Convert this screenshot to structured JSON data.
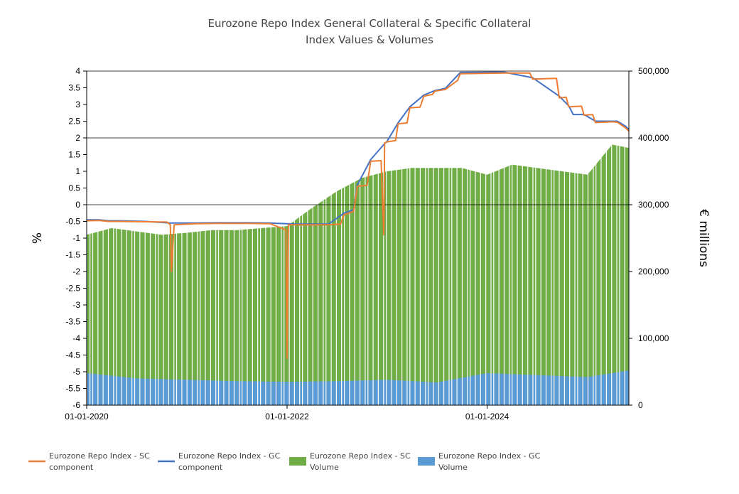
{
  "chart_data": {
    "type": "area",
    "title": "Eurozone Repo Index General Collateral & Specific Collateral",
    "subtitle": "Index Values & Volumes",
    "ylabel_left": "%",
    "ylabel_right": "€ millions",
    "ylim_left": [
      -6,
      4
    ],
    "ylim_right": [
      0,
      500000
    ],
    "xlim": [
      "2020-01-01",
      "2025-06-01"
    ],
    "y_ticks_left": [
      "4",
      "3.5",
      "3",
      "2.5",
      "2",
      "1.5",
      "1",
      "0.5",
      "0",
      "-0.5",
      "-1",
      "-1.5",
      "-2",
      "-2.5",
      "-3",
      "-3.5",
      "-4",
      "-4.5",
      "-5",
      "-5.5",
      "-6"
    ],
    "y_ticks_right": [
      "500,000",
      "400,000",
      "300,000",
      "200,000",
      "100,000",
      "0"
    ],
    "x_ticks": [
      {
        "date": "2020-01-01",
        "label": "01-01-2020"
      },
      {
        "date": "2022-01-01",
        "label": "01-01-2022"
      },
      {
        "date": "2024-01-01",
        "label": "01-01-2024"
      }
    ],
    "grid_lines_left": [
      0,
      2,
      4
    ],
    "legend_position": "bottom",
    "legend": [
      {
        "line1": "Eurozone Repo Index - SC",
        "line2": "component",
        "kind": "line",
        "color": "#ED7D31"
      },
      {
        "line1": "Eurozone Repo Index - GC",
        "line2": "component",
        "kind": "line",
        "color": "#4472C4"
      },
      {
        "line1": "Eurozone Repo Index - SC",
        "line2": "Volume",
        "kind": "area",
        "color": "#70AD47"
      },
      {
        "line1": "Eurozone Repo Index - GC",
        "line2": "Volume",
        "kind": "area",
        "color": "#5B9BD5"
      }
    ],
    "series": [
      {
        "name": "Eurozone Repo Index - SC component",
        "axis": "left",
        "type": "line",
        "color": "#ED7D31",
        "x": [
          "2020-01-01",
          "2020-02-15",
          "2020-03-20",
          "2020-05-01",
          "2020-08-01",
          "2020-10-20",
          "2020-11-01",
          "2020-11-05",
          "2020-11-15",
          "2021-02-01",
          "2021-05-01",
          "2021-08-01",
          "2021-11-01",
          "2021-12-28",
          "2022-01-01",
          "2022-01-06",
          "2022-02-01",
          "2022-04-01",
          "2022-06-01",
          "2022-07-15",
          "2022-07-28",
          "2022-09-01",
          "2022-09-15",
          "2022-10-20",
          "2022-11-02",
          "2022-12-10",
          "2022-12-20",
          "2022-12-23",
          "2023-01-01",
          "2023-02-01",
          "2023-02-10",
          "2023-03-15",
          "2023-03-25",
          "2023-05-01",
          "2023-05-15",
          "2023-06-15",
          "2023-06-25",
          "2023-08-01",
          "2023-09-15",
          "2023-09-25",
          "2024-03-01",
          "2024-06-05",
          "2024-06-15",
          "2024-09-10",
          "2024-09-20",
          "2024-10-15",
          "2024-10-25",
          "2024-12-10",
          "2024-12-20",
          "2025-01-20",
          "2025-01-30",
          "2025-03-05",
          "2025-04-01",
          "2025-04-20",
          "2025-05-20",
          "2025-06-01"
        ],
        "values": [
          -0.48,
          -0.47,
          -0.5,
          -0.5,
          -0.51,
          -0.52,
          -0.6,
          -2,
          -0.6,
          -0.57,
          -0.56,
          -0.56,
          -0.57,
          -0.75,
          -4.6,
          -0.6,
          -0.6,
          -0.6,
          -0.6,
          -0.58,
          -0.3,
          -0.2,
          0.55,
          0.58,
          1.3,
          1.32,
          -0.9,
          1.85,
          1.88,
          1.92,
          2.42,
          2.45,
          2.9,
          2.92,
          3.25,
          3.3,
          3.4,
          3.45,
          3.72,
          3.92,
          3.94,
          3.94,
          3.76,
          3.78,
          3.2,
          3.22,
          2.93,
          2.95,
          2.68,
          2.7,
          2.46,
          2.47,
          2.48,
          2.47,
          2.3,
          2.2
        ]
      },
      {
        "name": "Eurozone Repo Index - GC component",
        "axis": "left",
        "type": "line",
        "color": "#4472C4",
        "x": [
          "2020-01-01",
          "2020-02-15",
          "2020-03-20",
          "2020-05-01",
          "2020-08-01",
          "2020-11-01",
          "2021-02-01",
          "2021-05-01",
          "2021-08-01",
          "2021-11-01",
          "2022-02-01",
          "2022-04-01",
          "2022-06-01",
          "2022-07-28",
          "2022-09-01",
          "2022-09-15",
          "2022-11-02",
          "2022-12-20",
          "2023-01-01",
          "2023-02-10",
          "2023-03-25",
          "2023-05-15",
          "2023-06-25",
          "2023-08-01",
          "2023-09-25",
          "2024-03-01",
          "2024-06-15",
          "2024-09-20",
          "2024-10-25",
          "2024-11-10",
          "2024-12-20",
          "2025-01-30",
          "2025-03-05",
          "2025-04-20",
          "2025-05-20",
          "2025-06-01"
        ],
        "values": [
          -0.45,
          -0.45,
          -0.48,
          -0.48,
          -0.5,
          -0.55,
          -0.55,
          -0.54,
          -0.54,
          -0.55,
          -0.58,
          -0.58,
          -0.58,
          -0.25,
          -0.15,
          0.6,
          1.35,
          1.8,
          1.9,
          2.45,
          2.93,
          3.28,
          3.42,
          3.48,
          3.96,
          3.97,
          3.8,
          3.25,
          2.96,
          2.7,
          2.7,
          2.5,
          2.5,
          2.5,
          2.35,
          2.25
        ]
      },
      {
        "name": "Eurozone Repo Index - SC Volume",
        "axis": "right",
        "type": "area",
        "color": "#70AD47",
        "x": [
          "2020-01-01",
          "2020-04-01",
          "2020-07-01",
          "2020-10-01",
          "2021-01-01",
          "2021-04-01",
          "2021-07-01",
          "2021-10-01",
          "2022-01-01",
          "2022-04-01",
          "2022-07-01",
          "2022-10-01",
          "2023-01-01",
          "2023-04-01",
          "2023-07-01",
          "2023-10-01",
          "2024-01-01",
          "2024-04-01",
          "2024-07-01",
          "2024-10-01",
          "2025-01-01",
          "2025-04-01",
          "2025-06-01"
        ],
        "values": [
          255000,
          265000,
          260000,
          255000,
          258000,
          262000,
          262000,
          265000,
          268000,
          295000,
          320000,
          340000,
          350000,
          355000,
          355000,
          355000,
          345000,
          360000,
          355000,
          350000,
          345000,
          390000,
          385000
        ]
      },
      {
        "name": "Eurozone Repo Index - GC Volume",
        "axis": "right",
        "type": "area",
        "color": "#5B9BD5",
        "x": [
          "2020-01-01",
          "2020-07-01",
          "2021-01-01",
          "2021-07-01",
          "2022-01-01",
          "2022-07-01",
          "2023-01-01",
          "2023-07-01",
          "2024-01-01",
          "2024-07-01",
          "2025-01-01",
          "2025-06-01"
        ],
        "values": [
          48000,
          40000,
          38000,
          36000,
          35000,
          36000,
          38000,
          34000,
          48000,
          45000,
          42000,
          52000
        ]
      }
    ]
  }
}
